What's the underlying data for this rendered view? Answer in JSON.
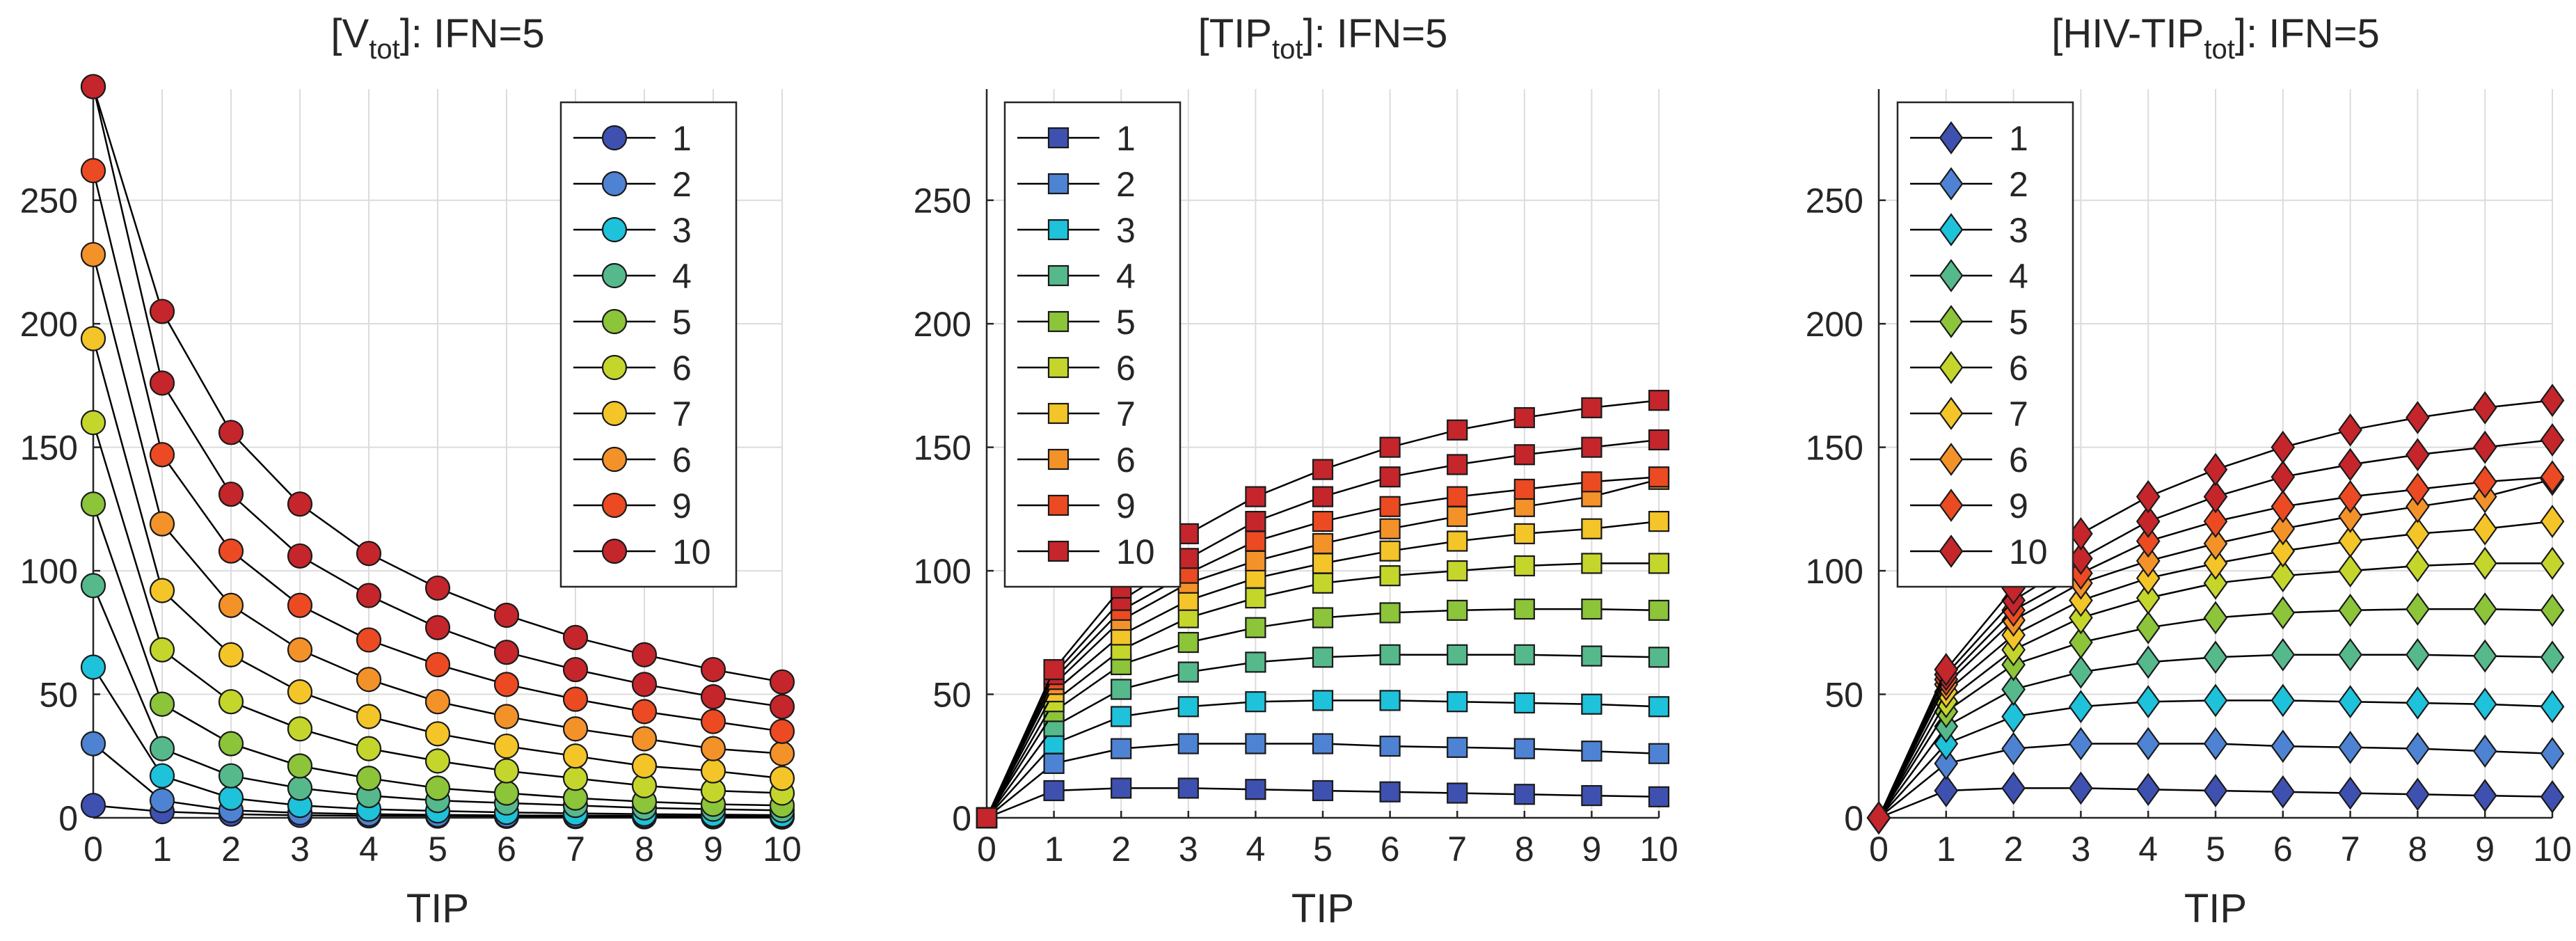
{
  "colors": {
    "series": [
      "#3f51b0",
      "#4e83d4",
      "#1ec2da",
      "#55b98c",
      "#8cc43a",
      "#c4d62c",
      "#f4c528",
      "#f4922a",
      "#ec4a22",
      "#c4262b"
    ],
    "line": "#000000",
    "grid": "#dcdcdc",
    "axis": "#262626"
  },
  "chart_data": [
    {
      "type": "line",
      "title_main": "[V",
      "title_sub": "tot",
      "title_tail": "]: IFN=5",
      "xlabel": "TIP",
      "ylabel": "",
      "marker": "circle",
      "xlim": [
        0,
        10
      ],
      "ylim": [
        0,
        295
      ],
      "xticks": [
        0,
        1,
        2,
        3,
        4,
        5,
        6,
        7,
        8,
        9,
        10
      ],
      "yticks": [
        0,
        50,
        100,
        150,
        200,
        250
      ],
      "grid": true,
      "legend_position": "top-right",
      "x": [
        0,
        1,
        2,
        3,
        4,
        5,
        6,
        7,
        8,
        9,
        10
      ],
      "series": [
        {
          "name": "1",
          "values": [
            5,
            2.5,
            1.5,
            1,
            0.8,
            0.7,
            0.6,
            0.5,
            0.4,
            0.4,
            0.3
          ]
        },
        {
          "name": "2",
          "values": [
            30,
            7,
            3,
            2,
            1.5,
            1.2,
            1,
            0.9,
            0.8,
            0.7,
            0.6
          ]
        },
        {
          "name": "3",
          "values": [
            61,
            17,
            8,
            5,
            3.5,
            2.8,
            2.2,
            1.8,
            1.5,
            1.3,
            1.1
          ]
        },
        {
          "name": "4",
          "values": [
            94,
            28,
            17,
            12,
            9,
            7,
            6,
            5,
            4,
            3.5,
            3
          ]
        },
        {
          "name": "5",
          "values": [
            127,
            46,
            30,
            21,
            16,
            12,
            10,
            8,
            6.5,
            5.5,
            5
          ]
        },
        {
          "name": "6",
          "values": [
            160,
            68,
            47,
            36,
            28,
            23,
            19,
            16,
            13,
            11,
            10
          ]
        },
        {
          "name": "7",
          "values": [
            194,
            92,
            66,
            51,
            41,
            34,
            29,
            25,
            21,
            19,
            16
          ]
        },
        {
          "name": "6",
          "values": [
            228,
            119,
            86,
            68,
            56,
            47,
            41,
            36,
            32,
            28,
            26
          ]
        },
        {
          "name": "9",
          "values": [
            262,
            147,
            108,
            86,
            72,
            62,
            54,
            48,
            43,
            39,
            35
          ]
        },
        {
          "name": "10",
          "values": [
            296,
            176,
            131,
            106,
            90,
            77,
            67,
            60,
            54,
            49,
            45
          ]
        },
        {
          "name": "",
          "values": [
            296,
            205,
            156,
            127,
            107,
            93,
            82,
            73,
            66,
            60,
            55
          ]
        }
      ]
    },
    {
      "type": "line",
      "title_main": "[TIP",
      "title_sub": "tot",
      "title_tail": "]:  IFN=5",
      "xlabel": "TIP",
      "ylabel": "",
      "marker": "square",
      "xlim": [
        0,
        10
      ],
      "ylim": [
        0,
        295
      ],
      "xticks": [
        0,
        1,
        2,
        3,
        4,
        5,
        6,
        7,
        8,
        9,
        10
      ],
      "yticks": [
        0,
        50,
        100,
        150,
        200,
        250
      ],
      "grid": true,
      "legend_position": "top-left",
      "x": [
        0,
        1,
        2,
        3,
        4,
        5,
        6,
        7,
        8,
        9,
        10
      ],
      "series": [
        {
          "name": "1",
          "values": [
            0,
            11,
            12,
            12,
            11.5,
            11,
            10.5,
            10,
            9.5,
            9,
            8.5
          ]
        },
        {
          "name": "2",
          "values": [
            0,
            22,
            28,
            30,
            30,
            30,
            29,
            28.5,
            28,
            27,
            26
          ]
        },
        {
          "name": "3",
          "values": [
            0,
            30,
            41,
            45,
            47,
            47.5,
            47.5,
            47,
            46.5,
            46,
            45
          ]
        },
        {
          "name": "4",
          "values": [
            0,
            37,
            52,
            59,
            63,
            65,
            66,
            66,
            66,
            65.5,
            65
          ]
        },
        {
          "name": "5",
          "values": [
            0,
            43,
            62,
            71,
            77,
            81,
            83,
            84,
            84.5,
            84.5,
            84
          ]
        },
        {
          "name": "6",
          "values": [
            0,
            47,
            68,
            81,
            89,
            95,
            98,
            100,
            102,
            103,
            103
          ]
        },
        {
          "name": "7",
          "values": [
            0,
            51,
            74,
            88,
            97,
            103,
            108,
            112,
            115,
            117,
            120
          ]
        },
        {
          "name": "6",
          "values": [
            0,
            54,
            80,
            95,
            104,
            111,
            117,
            122,
            126,
            130,
            137
          ]
        },
        {
          "name": "9",
          "values": [
            0,
            56,
            84,
            99,
            112,
            120,
            126,
            130,
            133,
            136,
            138
          ]
        },
        {
          "name": "10",
          "values": [
            0,
            58,
            88,
            105,
            120,
            130,
            138,
            143,
            147,
            150,
            153
          ]
        },
        {
          "name": "",
          "values": [
            0,
            60,
            93,
            115,
            130,
            141,
            150,
            157,
            162,
            166,
            169
          ]
        }
      ]
    },
    {
      "type": "line",
      "title_main": "[HIV-TIP",
      "title_sub": "tot",
      "title_tail": "]:  IFN=5",
      "xlabel": "TIP",
      "ylabel": "",
      "marker": "diamond",
      "xlim": [
        0,
        10
      ],
      "ylim": [
        0,
        295
      ],
      "xticks": [
        0,
        1,
        2,
        3,
        4,
        5,
        6,
        7,
        8,
        9,
        10
      ],
      "yticks": [
        0,
        50,
        100,
        150,
        200,
        250
      ],
      "grid": true,
      "legend_position": "top-left",
      "x": [
        0,
        1,
        2,
        3,
        4,
        5,
        6,
        7,
        8,
        9,
        10
      ],
      "series": [
        {
          "name": "1",
          "values": [
            0,
            11,
            12,
            12,
            11.5,
            11,
            10.5,
            10,
            9.5,
            9,
            8.5
          ]
        },
        {
          "name": "2",
          "values": [
            0,
            22,
            28,
            30,
            30,
            30,
            29,
            28.5,
            28,
            27,
            26
          ]
        },
        {
          "name": "3",
          "values": [
            0,
            30,
            41,
            45,
            47,
            47.5,
            47.5,
            47,
            46.5,
            46,
            45
          ]
        },
        {
          "name": "4",
          "values": [
            0,
            37,
            52,
            59,
            63,
            65,
            66,
            66,
            66,
            65.5,
            65
          ]
        },
        {
          "name": "5",
          "values": [
            0,
            43,
            62,
            71,
            77,
            81,
            83,
            84,
            84.5,
            84.5,
            84
          ]
        },
        {
          "name": "6",
          "values": [
            0,
            47,
            68,
            81,
            89,
            95,
            98,
            100,
            102,
            103,
            103
          ]
        },
        {
          "name": "7",
          "values": [
            0,
            51,
            74,
            88,
            97,
            103,
            108,
            112,
            115,
            117,
            120
          ]
        },
        {
          "name": "6",
          "values": [
            0,
            54,
            80,
            95,
            104,
            111,
            117,
            122,
            126,
            130,
            137
          ]
        },
        {
          "name": "9",
          "values": [
            0,
            56,
            84,
            99,
            112,
            120,
            126,
            130,
            133,
            136,
            138
          ]
        },
        {
          "name": "10",
          "values": [
            0,
            58,
            88,
            105,
            120,
            130,
            138,
            143,
            147,
            150,
            153
          ]
        },
        {
          "name": "",
          "values": [
            0,
            60,
            93,
            115,
            130,
            141,
            150,
            157,
            162,
            166,
            169
          ]
        }
      ]
    }
  ]
}
